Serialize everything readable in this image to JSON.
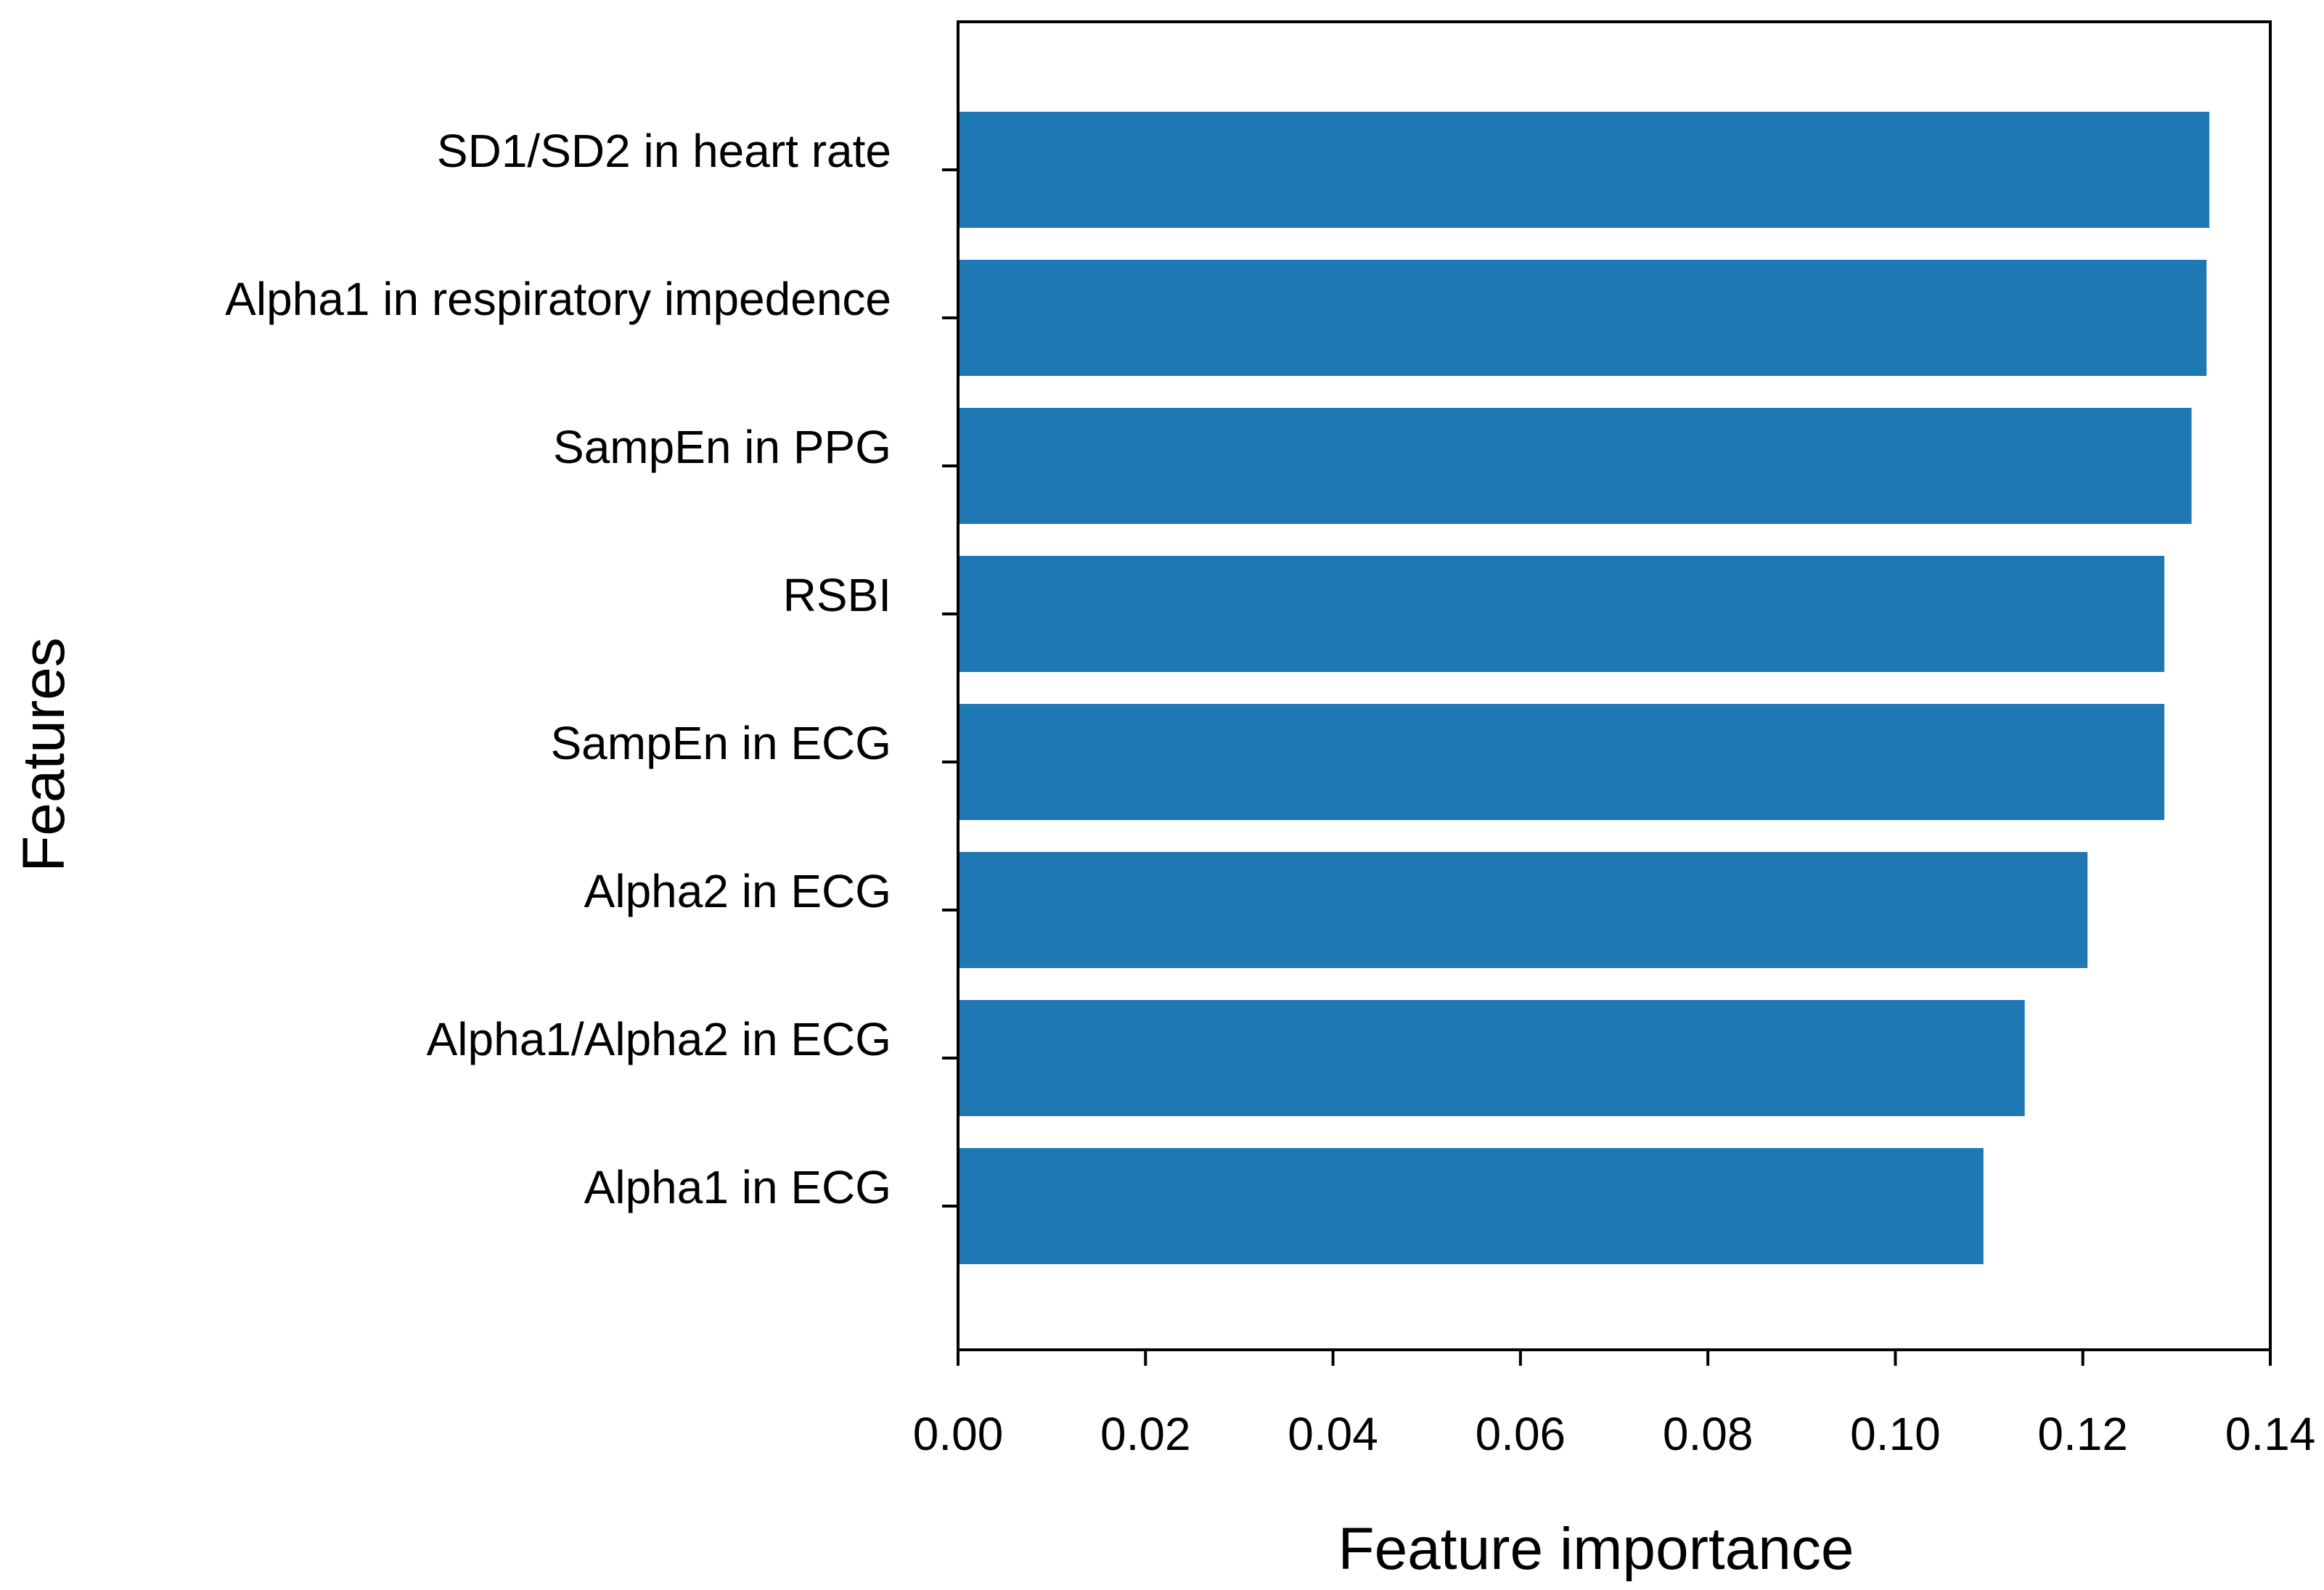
{
  "chart_data": {
    "type": "bar",
    "orientation": "horizontal",
    "title": "",
    "xlabel": "Feature importance",
    "ylabel": "Features",
    "categories": [
      "SD1/SD2 in heart rate",
      "Alpha1 in respiratory impedence",
      "SampEn in PPG",
      "RSBI",
      "SampEn in ECG",
      "Alpha2 in ECG",
      "Alpha1/Alpha2 in ECG",
      "Alpha1 in ECG"
    ],
    "values": [
      0.1335,
      0.1332,
      0.1316,
      0.1287,
      0.1287,
      0.1205,
      0.1138,
      0.1094
    ],
    "xlim": [
      0,
      0.14
    ],
    "xticks": [
      0.0,
      0.02,
      0.04,
      0.06,
      0.08,
      0.1,
      0.12,
      0.14
    ],
    "xtick_labels": [
      "0.00",
      "0.02",
      "0.04",
      "0.06",
      "0.08",
      "0.10",
      "0.12",
      "0.14"
    ],
    "grid": false,
    "legend": "none",
    "bar_color": "#1f77b4"
  }
}
